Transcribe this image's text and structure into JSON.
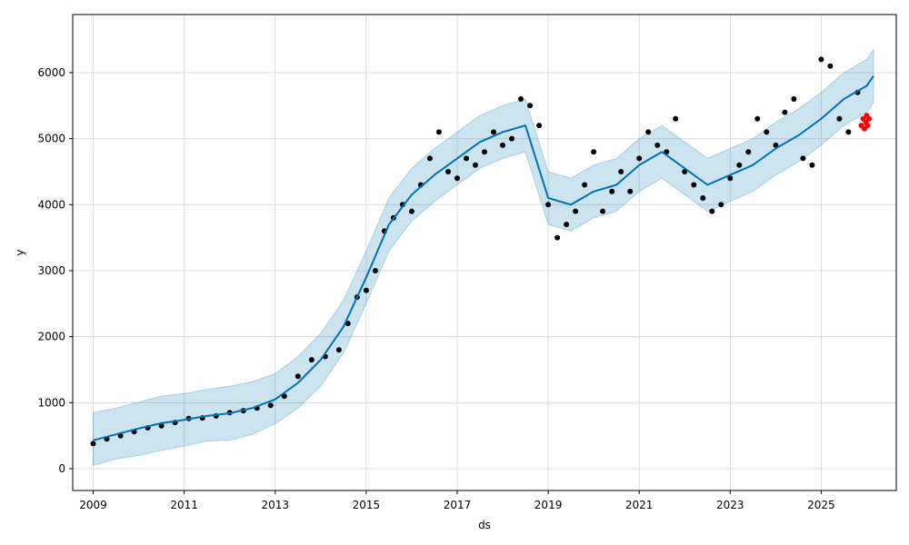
{
  "chart_data": {
    "type": "line",
    "title": "",
    "xlabel": "ds",
    "ylabel": "y",
    "xlim": [
      2008.55,
      2026.65
    ],
    "ylim": [
      -330,
      6880
    ],
    "x_ticks": [
      2009,
      2011,
      2013,
      2015,
      2017,
      2019,
      2021,
      2023,
      2025
    ],
    "x_tick_labels": [
      "2009",
      "2011",
      "2013",
      "2015",
      "2017",
      "2019",
      "2021",
      "2023",
      "2025"
    ],
    "y_ticks": [
      0,
      1000,
      2000,
      3000,
      4000,
      5000,
      6000
    ],
    "y_tick_labels": [
      "0",
      "1000",
      "2000",
      "3000",
      "4000",
      "5000",
      "6000"
    ],
    "grid": true,
    "legend": "none",
    "colors": {
      "forecast_line": "#0072B2",
      "uncertainty_band": "#0072B2",
      "observed_points": "#000000",
      "test_points": "#ff0000"
    },
    "series": [
      {
        "kind": "forecast",
        "x": [
          2009.0,
          2009.5,
          2010.0,
          2010.5,
          2011.0,
          2011.5,
          2012.0,
          2012.5,
          2013.0,
          2013.5,
          2014.0,
          2014.5,
          2015.0,
          2015.5,
          2016.0,
          2016.5,
          2017.0,
          2017.5,
          2018.0,
          2018.5,
          2019.0,
          2019.5,
          2020.0,
          2020.5,
          2021.0,
          2021.5,
          2022.0,
          2022.5,
          2023.0,
          2023.5,
          2024.0,
          2024.5,
          2025.0,
          2025.5,
          2026.0,
          2026.15
        ],
        "y": [
          430,
          520,
          610,
          690,
          740,
          800,
          840,
          920,
          1050,
          1300,
          1650,
          2150,
          2900,
          3700,
          4150,
          4450,
          4700,
          4950,
          5100,
          5200,
          4100,
          4000,
          4200,
          4300,
          4600,
          4800,
          4550,
          4300,
          4450,
          4600,
          4850,
          5050,
          5300,
          5600,
          5800,
          5950
        ]
      },
      {
        "kind": "uncertainty_lower",
        "x": [
          2009.0,
          2009.5,
          2010.0,
          2010.5,
          2011.0,
          2011.5,
          2012.0,
          2012.5,
          2013.0,
          2013.5,
          2014.0,
          2014.5,
          2015.0,
          2015.5,
          2016.0,
          2016.5,
          2017.0,
          2017.5,
          2018.0,
          2018.5,
          2019.0,
          2019.5,
          2020.0,
          2020.5,
          2021.0,
          2021.5,
          2022.0,
          2022.5,
          2023.0,
          2023.5,
          2024.0,
          2024.5,
          2025.0,
          2025.5,
          2026.0,
          2026.15
        ],
        "y": [
          50,
          150,
          200,
          280,
          340,
          420,
          430,
          520,
          680,
          920,
          1250,
          1750,
          2500,
          3300,
          3750,
          4050,
          4300,
          4550,
          4700,
          4800,
          3700,
          3600,
          3800,
          3900,
          4200,
          4400,
          4150,
          3900,
          4050,
          4200,
          4450,
          4650,
          4900,
          5200,
          5400,
          5550
        ]
      },
      {
        "kind": "uncertainty_upper",
        "x": [
          2009.0,
          2009.5,
          2010.0,
          2010.5,
          2011.0,
          2011.5,
          2012.0,
          2012.5,
          2013.0,
          2013.5,
          2014.0,
          2014.5,
          2015.0,
          2015.5,
          2016.0,
          2016.5,
          2017.0,
          2017.5,
          2018.0,
          2018.5,
          2019.0,
          2019.5,
          2020.0,
          2020.5,
          2021.0,
          2021.5,
          2022.0,
          2022.5,
          2023.0,
          2023.5,
          2024.0,
          2024.5,
          2025.0,
          2025.5,
          2026.0,
          2026.15
        ],
        "y": [
          850,
          920,
          1010,
          1100,
          1140,
          1200,
          1250,
          1320,
          1440,
          1700,
          2050,
          2550,
          3300,
          4100,
          4550,
          4850,
          5100,
          5350,
          5500,
          5600,
          4500,
          4400,
          4600,
          4700,
          5000,
          5200,
          4950,
          4700,
          4850,
          5000,
          5250,
          5450,
          5700,
          6000,
          6200,
          6350
        ]
      },
      {
        "kind": "observed",
        "x": [
          2009.0,
          2009.3,
          2009.6,
          2009.9,
          2010.2,
          2010.5,
          2010.8,
          2011.1,
          2011.4,
          2011.7,
          2012.0,
          2012.3,
          2012.6,
          2012.9,
          2013.2,
          2013.5,
          2013.8,
          2014.1,
          2014.4,
          2014.6,
          2014.8,
          2015.0,
          2015.2,
          2015.4,
          2015.6,
          2015.8,
          2016.0,
          2016.2,
          2016.4,
          2016.6,
          2016.8,
          2017.0,
          2017.2,
          2017.4,
          2017.6,
          2017.8,
          2018.0,
          2018.2,
          2018.4,
          2018.6,
          2018.8,
          2019.0,
          2019.2,
          2019.4,
          2019.6,
          2019.8,
          2020.0,
          2020.2,
          2020.4,
          2020.6,
          2020.8,
          2021.0,
          2021.2,
          2021.4,
          2021.6,
          2021.8,
          2022.0,
          2022.2,
          2022.4,
          2022.6,
          2022.8,
          2023.0,
          2023.2,
          2023.4,
          2023.6,
          2023.8,
          2024.0,
          2024.2,
          2024.4,
          2024.6,
          2024.8,
          2025.0,
          2025.2,
          2025.4,
          2025.6,
          2025.8
        ],
        "y": [
          380,
          450,
          500,
          560,
          620,
          650,
          700,
          760,
          770,
          800,
          850,
          880,
          920,
          960,
          1100,
          1400,
          1650,
          1700,
          1800,
          2200,
          2600,
          2700,
          3000,
          3600,
          3800,
          4000,
          3900,
          4300,
          4700,
          5100,
          4500,
          4400,
          4700,
          4600,
          4800,
          5100,
          4900,
          5000,
          5600,
          5500,
          5200,
          4000,
          3500,
          3700,
          3900,
          4300,
          4800,
          3900,
          4200,
          4500,
          4200,
          4700,
          5100,
          4900,
          4800,
          5300,
          4500,
          4300,
          4100,
          3900,
          4000,
          4400,
          4600,
          4800,
          5300,
          5100,
          4900,
          5400,
          5600,
          4700,
          4600,
          6200,
          6100,
          5300,
          5100,
          5700
        ]
      },
      {
        "kind": "test",
        "x": [
          2025.88,
          2025.92,
          2025.95,
          2025.98,
          2026.0,
          2026.02,
          2026.05
        ],
        "y": [
          5200,
          5300,
          5150,
          5250,
          5350,
          5200,
          5300
        ]
      }
    ]
  }
}
